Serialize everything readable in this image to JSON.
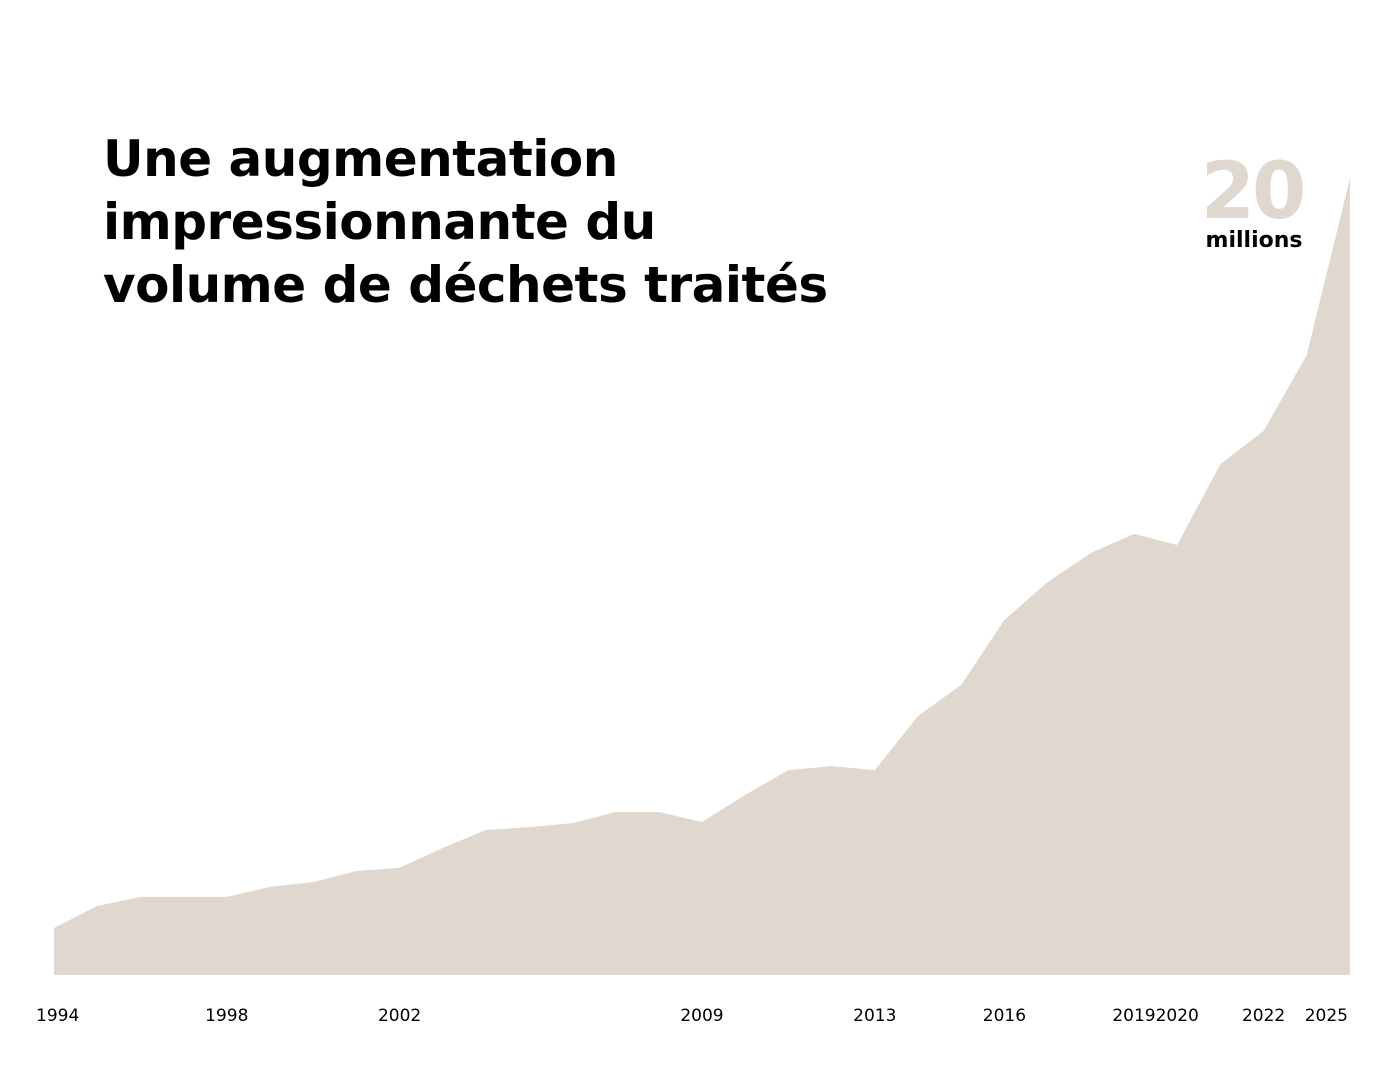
{
  "chart_data": {
    "type": "area",
    "title": "Une augmentation\nimpressionnante du\nvolume de déchets traités",
    "annotation": "20",
    "annotation_unit": "millions",
    "categories": [
      "1994",
      null,
      null,
      null,
      "1998",
      null,
      null,
      null,
      "2002",
      null,
      null,
      null,
      null,
      null,
      null,
      "2009",
      null,
      null,
      null,
      "2013",
      null,
      null,
      "2016",
      null,
      null,
      "2019",
      "2020",
      null,
      "2022",
      null,
      "2025"
    ],
    "values": [
      1.18,
      1.73,
      1.96,
      1.96,
      1.96,
      2.21,
      2.33,
      2.61,
      2.69,
      3.19,
      3.64,
      3.71,
      3.81,
      4.09,
      4.09,
      3.84,
      4.52,
      5.14,
      5.24,
      5.14,
      6.5,
      7.28,
      8.91,
      9.86,
      10.59,
      11.07,
      10.79,
      12.82,
      13.65,
      15.56,
      20
    ],
    "color": "#e0d7cf",
    "ylim": [
      0,
      20
    ]
  }
}
